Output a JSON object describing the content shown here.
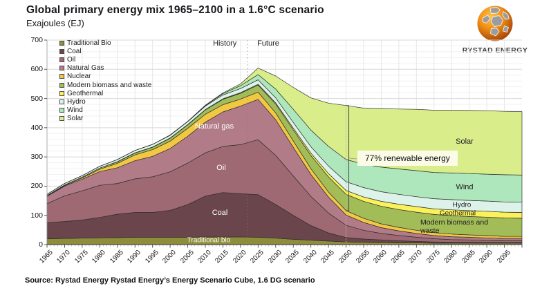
{
  "header": {
    "title": "Global primary energy mix 1965–2100 in a 1.6°C scenario",
    "subtitle": "Exajoules (EJ)"
  },
  "logo": {
    "text": "RYSTAD ENERGY"
  },
  "source": "Source: Rystad Energy Rystad Energy’s Energy Scenario Cube, 1.6 DG scenario",
  "chart_data": {
    "type": "area",
    "stacked": true,
    "title": "Global primary energy mix 1965–2100 in a 1.6°C scenario",
    "ylabel": "Exajoules (EJ)",
    "ylim": [
      0,
      700
    ],
    "xlim": [
      1965,
      2100
    ],
    "y_tick_step": 100,
    "x_tick_step": 5,
    "x_tick_labels": [
      "1965",
      "1970",
      "1975",
      "1980",
      "1985",
      "1990",
      "1995",
      "2000",
      "2005",
      "2010",
      "2015",
      "2020",
      "2025",
      "2030",
      "2035",
      "2040",
      "2045",
      "2050",
      "2055",
      "2060",
      "2065",
      "2070",
      "2075",
      "2080",
      "2085",
      "2090",
      "2095"
    ],
    "grid": true,
    "legend_position": "top-left",
    "x": [
      1965,
      1970,
      1975,
      1980,
      1985,
      1990,
      1995,
      2000,
      2005,
      2010,
      2015,
      2020,
      2025,
      2030,
      2035,
      2040,
      2045,
      2050,
      2055,
      2060,
      2065,
      2070,
      2075,
      2080,
      2085,
      2090,
      2095,
      2100
    ],
    "series": [
      {
        "name": "Traditional Bio",
        "color": "#8D8D3C",
        "values": [
          20,
          21,
          22,
          23,
          24,
          25,
          25,
          25,
          25,
          26,
          26,
          26,
          25,
          22,
          18,
          15,
          12,
          9,
          8,
          7,
          6,
          6,
          5,
          5,
          5,
          5,
          5,
          5
        ]
      },
      {
        "name": "Coal",
        "color": "#6A454C",
        "values": [
          55,
          58,
          62,
          70,
          80,
          85,
          85,
          92,
          112,
          140,
          152,
          148,
          146,
          115,
          82,
          50,
          28,
          15,
          11,
          9,
          7,
          5,
          4,
          3,
          3,
          2,
          2,
          2
        ]
      },
      {
        "name": "Oil",
        "color": "#9F6974",
        "values": [
          65,
          88,
          100,
          110,
          105,
          115,
          122,
          132,
          142,
          148,
          158,
          168,
          188,
          168,
          135,
          100,
          68,
          42,
          30,
          22,
          18,
          14,
          11,
          9,
          8,
          7,
          6,
          6
        ]
      },
      {
        "name": "Natural Gas",
        "color": "#B17C87",
        "values": [
          25,
          33,
          40,
          47,
          54,
          62,
          70,
          80,
          92,
          105,
          118,
          132,
          138,
          122,
          98,
          75,
          55,
          35,
          27,
          20,
          16,
          13,
          11,
          10,
          9,
          9,
          8,
          8
        ]
      },
      {
        "name": "Nuclear",
        "color": "#F2C744",
        "values": [
          1,
          2,
          4,
          8,
          15,
          20,
          23,
          25,
          27,
          27,
          25,
          24,
          25,
          24,
          22,
          20,
          17,
          15,
          14,
          13,
          12,
          11,
          10,
          9,
          8,
          8,
          7,
          7
        ]
      },
      {
        "name": "Modern biomass and waste",
        "color": "#A2BD58",
        "values": [
          2,
          2,
          3,
          4,
          5,
          6,
          8,
          10,
          12,
          15,
          18,
          20,
          24,
          30,
          38,
          45,
          52,
          56,
          58,
          60,
          61,
          62,
          62,
          63,
          63,
          63,
          63,
          62
        ]
      },
      {
        "name": "Geothermal",
        "color": "#FBF25B",
        "values": [
          0,
          0,
          0,
          0,
          1,
          1,
          1,
          1,
          1,
          1,
          2,
          2,
          3,
          4,
          6,
          8,
          11,
          13,
          15,
          17,
          18,
          19,
          19,
          20,
          20,
          20,
          20,
          20
        ]
      },
      {
        "name": "Hydro",
        "color": "#DDF3EA",
        "values": [
          4,
          5,
          5,
          6,
          7,
          8,
          9,
          9,
          10,
          12,
          13,
          14,
          15,
          17,
          19,
          22,
          26,
          30,
          32,
          33,
          34,
          34,
          35,
          35,
          35,
          35,
          35,
          35
        ]
      },
      {
        "name": "Wind",
        "color": "#AEE7BB",
        "values": [
          0,
          0,
          0,
          0,
          0,
          0,
          0,
          1,
          1,
          2,
          5,
          10,
          18,
          30,
          45,
          57,
          67,
          76,
          80,
          84,
          87,
          89,
          90,
          91,
          92,
          92,
          93,
          93
        ]
      },
      {
        "name": "Solar",
        "color": "#D9ED8A",
        "values": [
          0,
          0,
          0,
          0,
          0,
          0,
          0,
          0,
          0,
          1,
          2,
          6,
          22,
          45,
          75,
          110,
          148,
          185,
          192,
          200,
          205,
          210,
          213,
          215,
          216,
          217,
          217,
          217
        ]
      }
    ],
    "divider": {
      "year": 2022,
      "history_label": "History",
      "future_label": "Future"
    },
    "bracket": {
      "year": 2050,
      "bottom_ej": 116,
      "top_ej": 476,
      "label": "77% renewable energy"
    },
    "area_labels": [
      {
        "text": "Natural gas",
        "x": 310,
        "y": 183,
        "color": "#ffffff",
        "size": 11
      },
      {
        "text": "Oil",
        "x": 320,
        "y": 243,
        "color": "#ffffff",
        "size": 11
      },
      {
        "text": "Coal",
        "x": 318,
        "y": 308,
        "color": "#ffffff",
        "size": 11
      },
      {
        "text": "Traditional bio",
        "x": 302,
        "y": 348,
        "color": "#ffffff",
        "size": 10
      },
      {
        "text": "Solar",
        "x": 672,
        "y": 205,
        "color": "#1c1c1c",
        "size": 11
      },
      {
        "text": "Wind",
        "x": 672,
        "y": 271,
        "color": "#1c1c1c",
        "size": 11
      },
      {
        "text": "Hydro",
        "x": 668,
        "y": 297,
        "color": "#1c1c1c",
        "size": 10
      },
      {
        "text": "Geothermal",
        "x": 662,
        "y": 309,
        "color": "#1c1c1c",
        "size": 10
      },
      {
        "text": "Modern biomass and waste",
        "x": 608,
        "y": 316,
        "color": "#1c1c1c",
        "size": 10.5,
        "width": 120,
        "align": "left"
      }
    ]
  }
}
